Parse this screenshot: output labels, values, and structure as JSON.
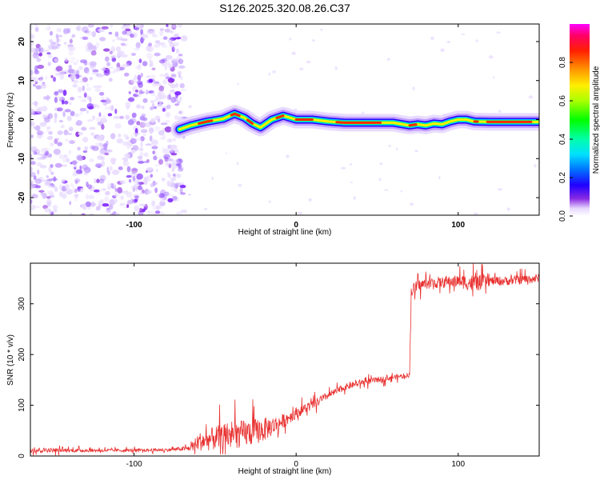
{
  "title": "S126.2025.320.08.26.C37",
  "chart_data": [
    {
      "type": "heatmap",
      "title": "S126.2025.320.08.26.C37",
      "xlabel": "Height of straight line (km)",
      "ylabel": "Frequency (Hz)",
      "xlim": [
        -164,
        150
      ],
      "ylim": [
        -24.5,
        24.5
      ],
      "xticks": [
        -100,
        0,
        100
      ],
      "yticks": [
        -20,
        -10,
        0,
        10,
        20
      ],
      "colorbar": {
        "label": "Normalized spectral amplitude",
        "range": [
          0,
          1
        ],
        "ticks": [
          "0.0",
          "0.2",
          "0.4",
          "0.6",
          "0.8"
        ],
        "colors": [
          "#ffffff",
          "#d9c2ff",
          "#8a2be2",
          "#3a00ff",
          "#0000ff",
          "#00bfff",
          "#00ffbf",
          "#00ff00",
          "#bfff00",
          "#ffff00",
          "#ffa500",
          "#ff3000",
          "#ff0060",
          "#ff00ff"
        ]
      },
      "noise_region_x": [
        -164,
        -72
      ],
      "ridge": {
        "x": [
          -72,
          -65,
          -55,
          -45,
          -38,
          -32,
          -27,
          -22,
          -15,
          -8,
          0,
          10,
          20,
          30,
          40,
          50,
          60,
          70,
          75,
          80,
          85,
          90,
          95,
          100,
          105,
          110,
          120,
          130,
          140,
          150
        ],
        "y": [
          -2.5,
          -1.5,
          -0.5,
          0.2,
          1.5,
          0.5,
          -1.0,
          -2.0,
          0.0,
          1.0,
          0.0,
          0.0,
          -0.5,
          -0.8,
          -0.8,
          -0.8,
          -0.8,
          -1.5,
          -1.2,
          -1.5,
          -1.0,
          -1.2,
          -0.5,
          0.0,
          0.0,
          -0.5,
          -0.6,
          -0.6,
          -0.6,
          -0.6
        ]
      }
    },
    {
      "type": "line",
      "xlabel": "Height of straight line (km)",
      "ylabel": "SNR (10 * v/v)",
      "xlim": [
        -164,
        150
      ],
      "ylim": [
        0,
        380
      ],
      "xticks": [
        -100,
        0,
        100
      ],
      "yticks": [
        0,
        100,
        200,
        300
      ],
      "color": "#e8302f",
      "series": [
        {
          "x": [
            -164,
            -140,
            -120,
            -100,
            -80,
            -66,
            -60,
            -50,
            -40,
            -30,
            -20,
            -10,
            0,
            10,
            20,
            30,
            40,
            50,
            60,
            70,
            71,
            75,
            80,
            90,
            100,
            110,
            120,
            130,
            140,
            150
          ],
          "y": [
            12,
            11,
            11,
            11,
            12,
            15,
            28,
            35,
            40,
            45,
            52,
            65,
            85,
            100,
            120,
            135,
            145,
            150,
            155,
            160,
            325,
            335,
            340,
            342,
            345,
            340,
            345,
            345,
            348,
            350
          ],
          "noise_amp": [
            8,
            6,
            5,
            5,
            5,
            8,
            30,
            40,
            45,
            45,
            40,
            25,
            18,
            15,
            12,
            10,
            10,
            10,
            8,
            8,
            20,
            20,
            18,
            18,
            20,
            30,
            15,
            15,
            15,
            15
          ]
        }
      ]
    }
  ]
}
